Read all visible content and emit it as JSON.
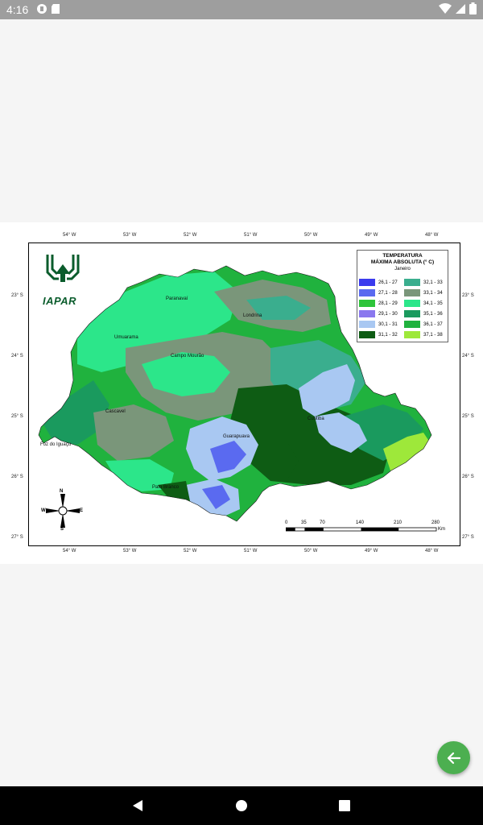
{
  "status_bar": {
    "time": "4:16"
  },
  "map": {
    "legend": {
      "title": "TEMPERATURA",
      "subtitle": "MÁXIMA ABSOLUTA (° C)",
      "month": "Janeiro",
      "items": [
        {
          "label": "26,1 - 27",
          "color": "#3a3aee"
        },
        {
          "label": "27,1 - 28",
          "color": "#5a6af0"
        },
        {
          "label": "28,1 - 29",
          "color": "#2ec43a"
        },
        {
          "label": "29,1 - 30",
          "color": "#8a78ee"
        },
        {
          "label": "30,1 - 31",
          "color": "#a9c8f2"
        },
        {
          "label": "31,1 - 32",
          "color": "#0e5c14"
        },
        {
          "label": "32,1 - 33",
          "color": "#3aae8e"
        },
        {
          "label": "33,1 - 34",
          "color": "#7a967a"
        },
        {
          "label": "34,1 - 35",
          "color": "#2ce68a"
        },
        {
          "label": "35,1 - 36",
          "color": "#1a9a5e"
        },
        {
          "label": "36,1 - 37",
          "color": "#20b23e"
        },
        {
          "label": "37,1 - 38",
          "color": "#9ee83a"
        }
      ]
    },
    "longitudes": [
      "54° W",
      "53° W",
      "52° W",
      "51° W",
      "50° W",
      "49° W",
      "48° W"
    ],
    "latitudes": [
      "23° S",
      "24° S",
      "25° S",
      "26° S",
      "27° S"
    ],
    "places": {
      "paranavai": "Paranavaí",
      "londrina": "Londrina",
      "umuarama": "Umuarama",
      "campo_mourao": "Campo Mourão",
      "cascavel": "Cascavel",
      "foz": "Foz do Iguaçu",
      "guarapuava": "Guarapuava",
      "pato_branco": "Pato Branco",
      "curitiba": "Curitiba"
    },
    "logo_text": "IAPAR",
    "scale": {
      "ticks": [
        "0",
        "35",
        "70",
        "140",
        "210",
        "280"
      ],
      "unit": "Km"
    },
    "compass": {
      "n": "N",
      "s": "S",
      "e": "E",
      "w": "W"
    }
  },
  "colors": {
    "fab": "#4caf50",
    "status_bar": "#9e9e9e",
    "background": "#f5f5f5"
  }
}
